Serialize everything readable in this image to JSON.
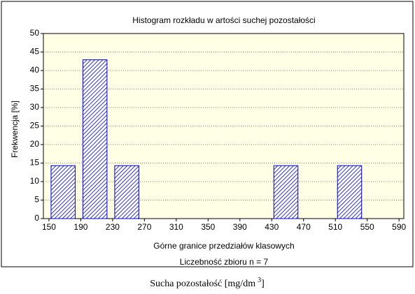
{
  "chart_data": {
    "type": "histogram",
    "title": "Histogram rozkładu w artości suchej pozostałości",
    "y_label": "Frekwencja [%]",
    "x_label": "Górne granice przedziałów klasowych",
    "annotation": "Liczebność zbioru  n = 7",
    "caption": "Sucha pozostałość [mg/dm",
    "caption_superscript": "3",
    "caption_end": "]",
    "bins": [
      150,
      190,
      230,
      270,
      310,
      350,
      390,
      430,
      470,
      510,
      550
    ],
    "values": [
      14.3,
      42.9,
      14.3,
      0,
      0,
      0,
      0,
      14.3,
      0,
      14.3
    ],
    "color": "#0000cc",
    "xlim": [
      143,
      596
    ],
    "xticks": [
      150,
      190,
      230,
      270,
      310,
      350,
      390,
      430,
      470,
      510,
      550,
      590
    ],
    "ylim": [
      0,
      50
    ],
    "yticks": [
      0,
      5,
      10,
      15,
      20,
      25,
      30,
      35,
      40,
      45,
      50
    ],
    "grid": true
  }
}
